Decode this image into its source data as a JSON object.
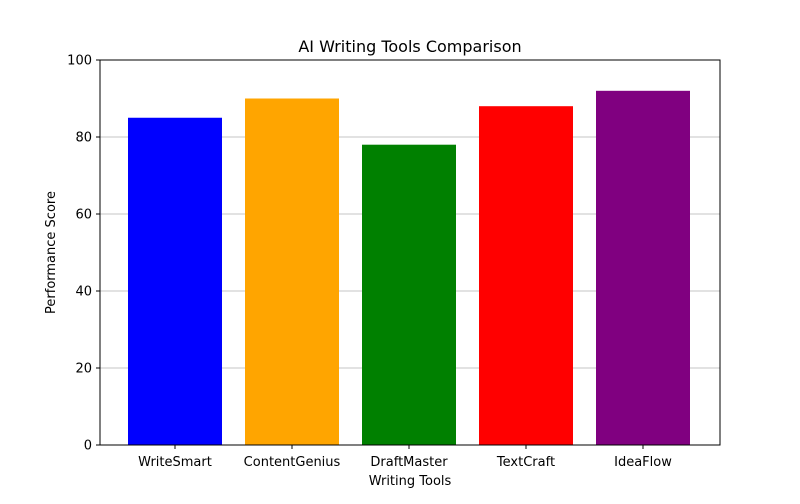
{
  "chart_data": {
    "type": "bar",
    "title": "AI Writing Tools Comparison",
    "xlabel": "Writing Tools",
    "ylabel": "Performance Score",
    "categories": [
      "WriteSmart",
      "ContentGenius",
      "DraftMaster",
      "TextCraft",
      "IdeaFlow"
    ],
    "values": [
      85,
      90,
      78,
      88,
      92
    ],
    "colors": [
      "#0000ff",
      "#ffa500",
      "#008000",
      "#ff0000",
      "#800080"
    ],
    "ylim": [
      0,
      100
    ],
    "yticks": [
      0,
      20,
      40,
      60,
      80,
      100
    ],
    "grid": "y-axis",
    "gridColor": "#b0b0b0"
  }
}
